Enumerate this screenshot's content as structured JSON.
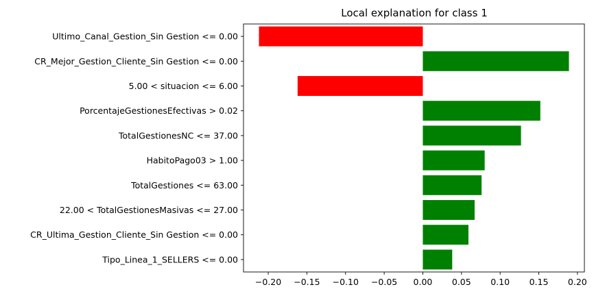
{
  "chart_data": {
    "type": "bar",
    "orientation": "horizontal",
    "title": "Local explanation for class 1",
    "xlabel": "",
    "ylabel": "",
    "categories": [
      "Ultimo_Canal_Gestion_Sin Gestion <= 0.00",
      "CR_Mejor_Gestion_Cliente_Sin Gestion <= 0.00",
      "5.00 < situacion <= 6.00",
      "PorcentajeGestionesEfectivas > 0.02",
      "TotalGestionesNC <= 37.00",
      "HabitoPago03 > 1.00",
      "TotalGestiones <= 63.00",
      "22.00 < TotalGestionesMasivas <= 27.00",
      "CR_Ultima_Gestion_Cliente_Sin Gestion <= 0.00",
      "Tipo_Linea_1_SELLERS <= 0.00"
    ],
    "values": [
      -0.212,
      0.189,
      -0.162,
      0.152,
      0.127,
      0.08,
      0.076,
      0.067,
      0.059,
      0.038
    ],
    "xlim": [
      -0.232,
      0.209
    ],
    "xticks": [
      -0.2,
      -0.15,
      -0.1,
      -0.05,
      0.0,
      0.05,
      0.1,
      0.15,
      0.2
    ],
    "xtick_labels": [
      "−0.20",
      "−0.15",
      "−0.10",
      "−0.05",
      "0.00",
      "0.05",
      "0.10",
      "0.15",
      "0.20"
    ],
    "colors": {
      "positive": "#008000",
      "negative": "#ff0000"
    },
    "grid": false,
    "legend": "none"
  }
}
